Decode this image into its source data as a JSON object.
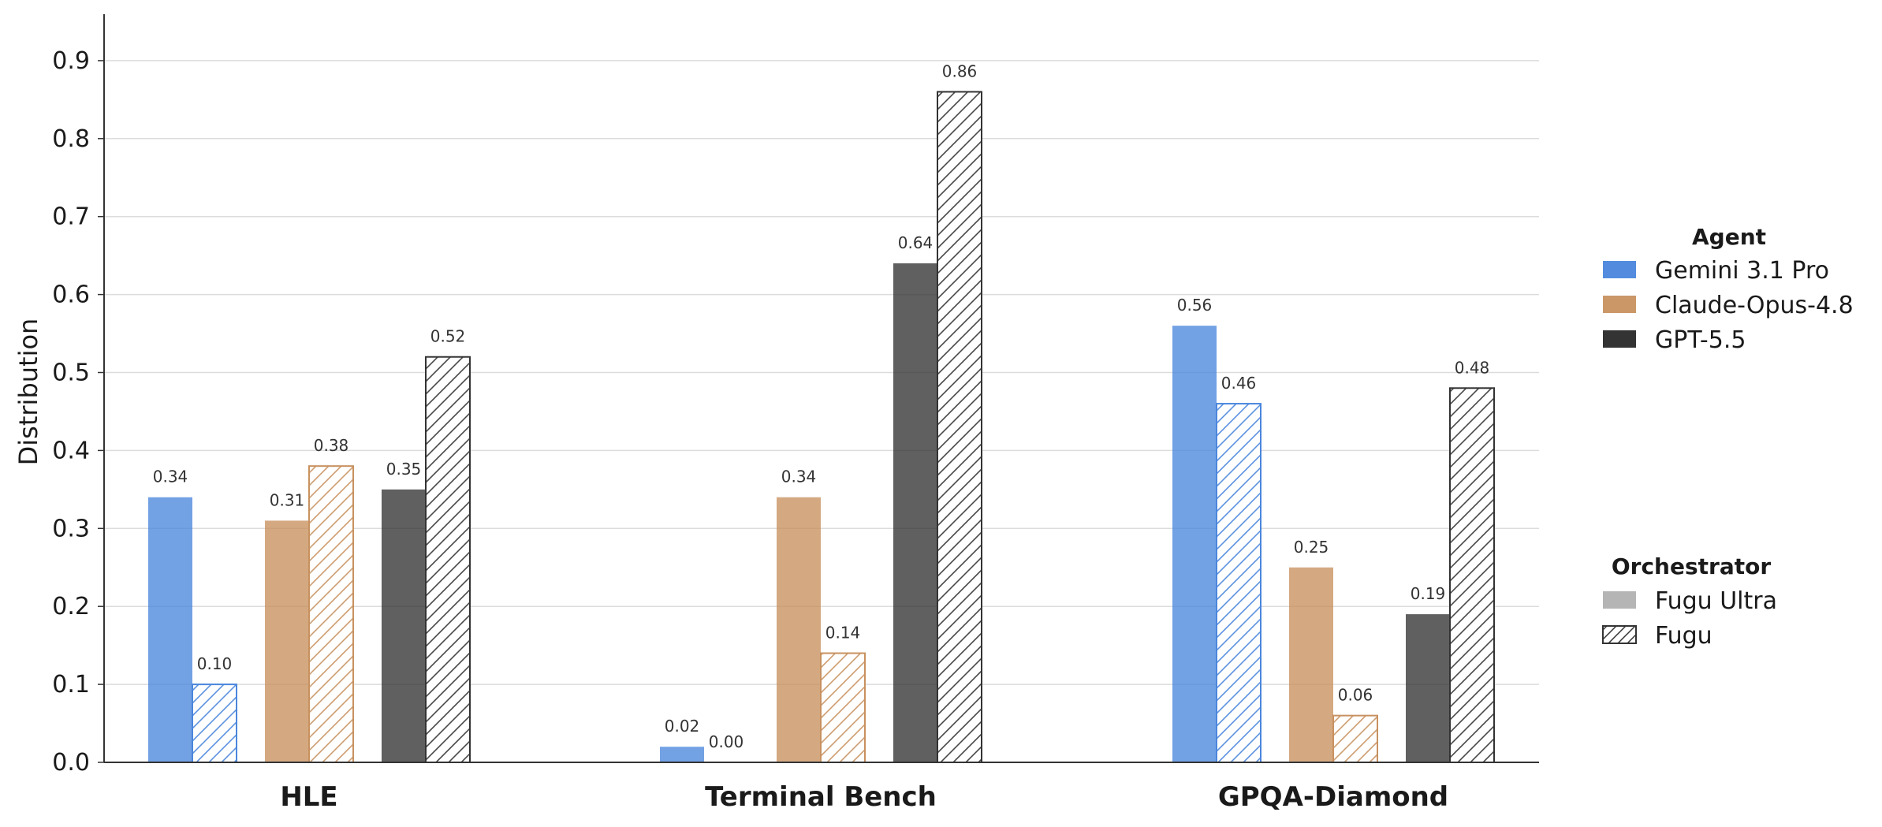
{
  "chart_data": {
    "type": "bar",
    "title": "",
    "xlabel": "",
    "ylabel": "Distribution",
    "ylim": [
      0,
      0.96
    ],
    "yticks": [
      "0.0",
      "0.1",
      "0.2",
      "0.3",
      "0.4",
      "0.5",
      "0.6",
      "0.7",
      "0.8",
      "0.9"
    ],
    "categories": [
      "HLE",
      "Terminal Bench",
      "GPQA-Diamond"
    ],
    "grid": "horizontal",
    "legend_position": "right",
    "series": [
      {
        "name": "Gemini 3.1 Pro / Fugu Ultra",
        "agent": "Gemini 3.1 Pro",
        "orchestrator": "Fugu Ultra",
        "values": [
          0.34,
          0.02,
          0.56
        ],
        "labels": [
          "0.34",
          "0.02",
          "0.56"
        ],
        "color": "#4a86dc",
        "hatched": false
      },
      {
        "name": "Gemini 3.1 Pro / Fugu",
        "agent": "Gemini 3.1 Pro",
        "orchestrator": "Fugu",
        "values": [
          0.1,
          0.0,
          0.46
        ],
        "labels": [
          "0.10",
          "0.00",
          "0.46"
        ],
        "color": "#4a86dc",
        "hatched": true
      },
      {
        "name": "Claude-Opus-4.8 / Fugu Ultra",
        "agent": "Claude-Opus-4.8",
        "orchestrator": "Fugu Ultra",
        "values": [
          0.31,
          0.34,
          0.25
        ],
        "labels": [
          "0.31",
          "0.34",
          "0.25"
        ],
        "color": "#c8915f",
        "hatched": false
      },
      {
        "name": "Claude-Opus-4.8 / Fugu",
        "agent": "Claude-Opus-4.8",
        "orchestrator": "Fugu",
        "values": [
          0.38,
          0.14,
          0.06
        ],
        "labels": [
          "0.38",
          "0.14",
          "0.06"
        ],
        "color": "#c8915f",
        "hatched": true
      },
      {
        "name": "GPT-5.5 / Fugu Ultra",
        "agent": "GPT-5.5",
        "orchestrator": "Fugu Ultra",
        "values": [
          0.35,
          0.64,
          0.19
        ],
        "labels": [
          "0.35",
          "0.64",
          "0.19"
        ],
        "color": "#333333",
        "hatched": false
      },
      {
        "name": "GPT-5.5 / Fugu",
        "agent": "GPT-5.5",
        "orchestrator": "Fugu",
        "values": [
          0.52,
          0.86,
          0.48
        ],
        "labels": [
          "0.52",
          "0.86",
          "0.48"
        ],
        "color": "#333333",
        "hatched": true
      }
    ],
    "legend": {
      "agent_title": "Agent",
      "agents": [
        {
          "label": "Gemini 3.1 Pro",
          "color": "#4a86dc"
        },
        {
          "label": "Claude-Opus-4.8",
          "color": "#c8915f"
        },
        {
          "label": "GPT-5.5",
          "color": "#333333"
        }
      ],
      "orchestrator_title": "Orchestrator",
      "orchestrators": [
        {
          "label": "Fugu Ultra",
          "style": "solid",
          "color": "#b5b5b5"
        },
        {
          "label": "Fugu",
          "style": "hatched",
          "color": "#333333"
        }
      ]
    }
  }
}
